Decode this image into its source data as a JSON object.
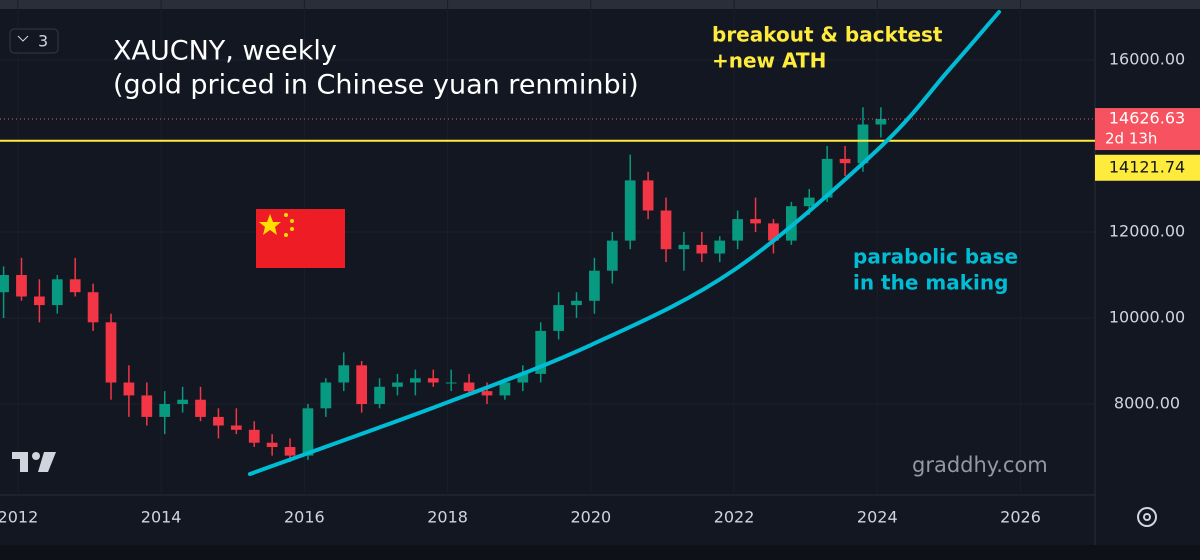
{
  "chart_data": {
    "type": "candlestick",
    "title": "XAUCNY, weekly",
    "subtitle": "(gold priced in Chinese yuan renminbi)",
    "annotations": [
      "breakout & backtest",
      "+new ATH",
      "parabolic base",
      "in the making"
    ],
    "watermark": "graddhy.com",
    "indicator_badge": "3",
    "x": [
      2011.8,
      2012.05,
      2012.3,
      2012.55,
      2012.8,
      2013.05,
      2013.3,
      2013.55,
      2013.8,
      2014.05,
      2014.3,
      2014.55,
      2014.8,
      2015.05,
      2015.3,
      2015.55,
      2015.8,
      2016.05,
      2016.3,
      2016.55,
      2016.8,
      2017.05,
      2017.3,
      2017.55,
      2017.8,
      2018.05,
      2018.3,
      2018.55,
      2018.8,
      2019.05,
      2019.3,
      2019.55,
      2019.8,
      2020.05,
      2020.3,
      2020.55,
      2020.8,
      2021.05,
      2021.3,
      2021.55,
      2021.8,
      2022.05,
      2022.3,
      2022.55,
      2022.8,
      2023.05,
      2023.3,
      2023.55,
      2023.8,
      2024.05
    ],
    "open": [
      10600,
      11000,
      10500,
      10300,
      10900,
      10600,
      9900,
      8500,
      8200,
      7700,
      8000,
      8100,
      7700,
      7500,
      7400,
      7100,
      7000,
      6800,
      7900,
      8500,
      8900,
      8000,
      8400,
      8500,
      8600,
      8500,
      8500,
      8300,
      8200,
      8500,
      8700,
      9700,
      10300,
      10400,
      11100,
      11800,
      13200,
      12500,
      11600,
      11700,
      11500,
      11800,
      12300,
      12200,
      11800,
      12600,
      12800,
      13700,
      13600,
      14500
    ],
    "high": [
      11200,
      11400,
      10900,
      11000,
      11400,
      10800,
      10100,
      8900,
      8500,
      8300,
      8400,
      8400,
      7900,
      7900,
      7600,
      7300,
      7200,
      8000,
      8600,
      9200,
      9000,
      8600,
      8700,
      8800,
      8800,
      8800,
      8700,
      8500,
      8600,
      8900,
      9900,
      10600,
      10600,
      11400,
      12000,
      13800,
      13400,
      12800,
      12000,
      12000,
      11900,
      12500,
      12800,
      12300,
      12700,
      13000,
      14000,
      14000,
      14900,
      14900
    ],
    "low": [
      10000,
      10400,
      9900,
      10100,
      10500,
      9700,
      8100,
      7700,
      7500,
      7300,
      7800,
      7600,
      7200,
      7300,
      7000,
      6800,
      6650,
      6700,
      7700,
      8300,
      7800,
      7900,
      8200,
      8200,
      8400,
      8300,
      8200,
      8000,
      8100,
      8300,
      8500,
      9500,
      10000,
      10100,
      10800,
      11600,
      12300,
      11300,
      11100,
      11300,
      11300,
      11600,
      12000,
      11500,
      11700,
      12400,
      12700,
      13300,
      13400,
      14200
    ],
    "close": [
      11000,
      10500,
      10300,
      10900,
      10600,
      9900,
      8500,
      8200,
      7700,
      8000,
      8100,
      7700,
      7500,
      7400,
      7100,
      7000,
      6800,
      7900,
      8500,
      8900,
      8000,
      8400,
      8500,
      8600,
      8500,
      8500,
      8300,
      8200,
      8500,
      8700,
      9700,
      10300,
      10400,
      11100,
      11800,
      13200,
      12500,
      11600,
      11700,
      11500,
      11800,
      12300,
      12200,
      11800,
      12600,
      12800,
      13700,
      13600,
      14500,
      14626.63
    ],
    "up_color": "#089981",
    "down_color": "#f23645",
    "hline": {
      "value": 14121.74,
      "color": "#ffeb3b"
    },
    "last_price": {
      "value": 14626.63,
      "countdown": "2d 13h",
      "color": "#f7525f"
    },
    "curve": {
      "x": [
        2015.24,
        2017.9,
        2020.0,
        2022.0,
        2024.0,
        2025.0,
        2025.7
      ],
      "values": [
        6372,
        7977,
        9372,
        11116,
        13907,
        15767,
        17116
      ],
      "color": "#00bcd4"
    },
    "xlim": [
      2011.75,
      2027.04
    ],
    "ylim": [
      5884,
      17395
    ],
    "xticks": [
      2012,
      2014,
      2016,
      2018,
      2020,
      2022,
      2024,
      2026
    ],
    "yticks": [
      {
        "value": 8000,
        "label": "8000.00"
      },
      {
        "value": 10000,
        "label": "10000.00"
      },
      {
        "value": 12000,
        "label": "12000.00"
      },
      {
        "value": 16000,
        "label": "16000.00"
      }
    ],
    "grid": true
  }
}
